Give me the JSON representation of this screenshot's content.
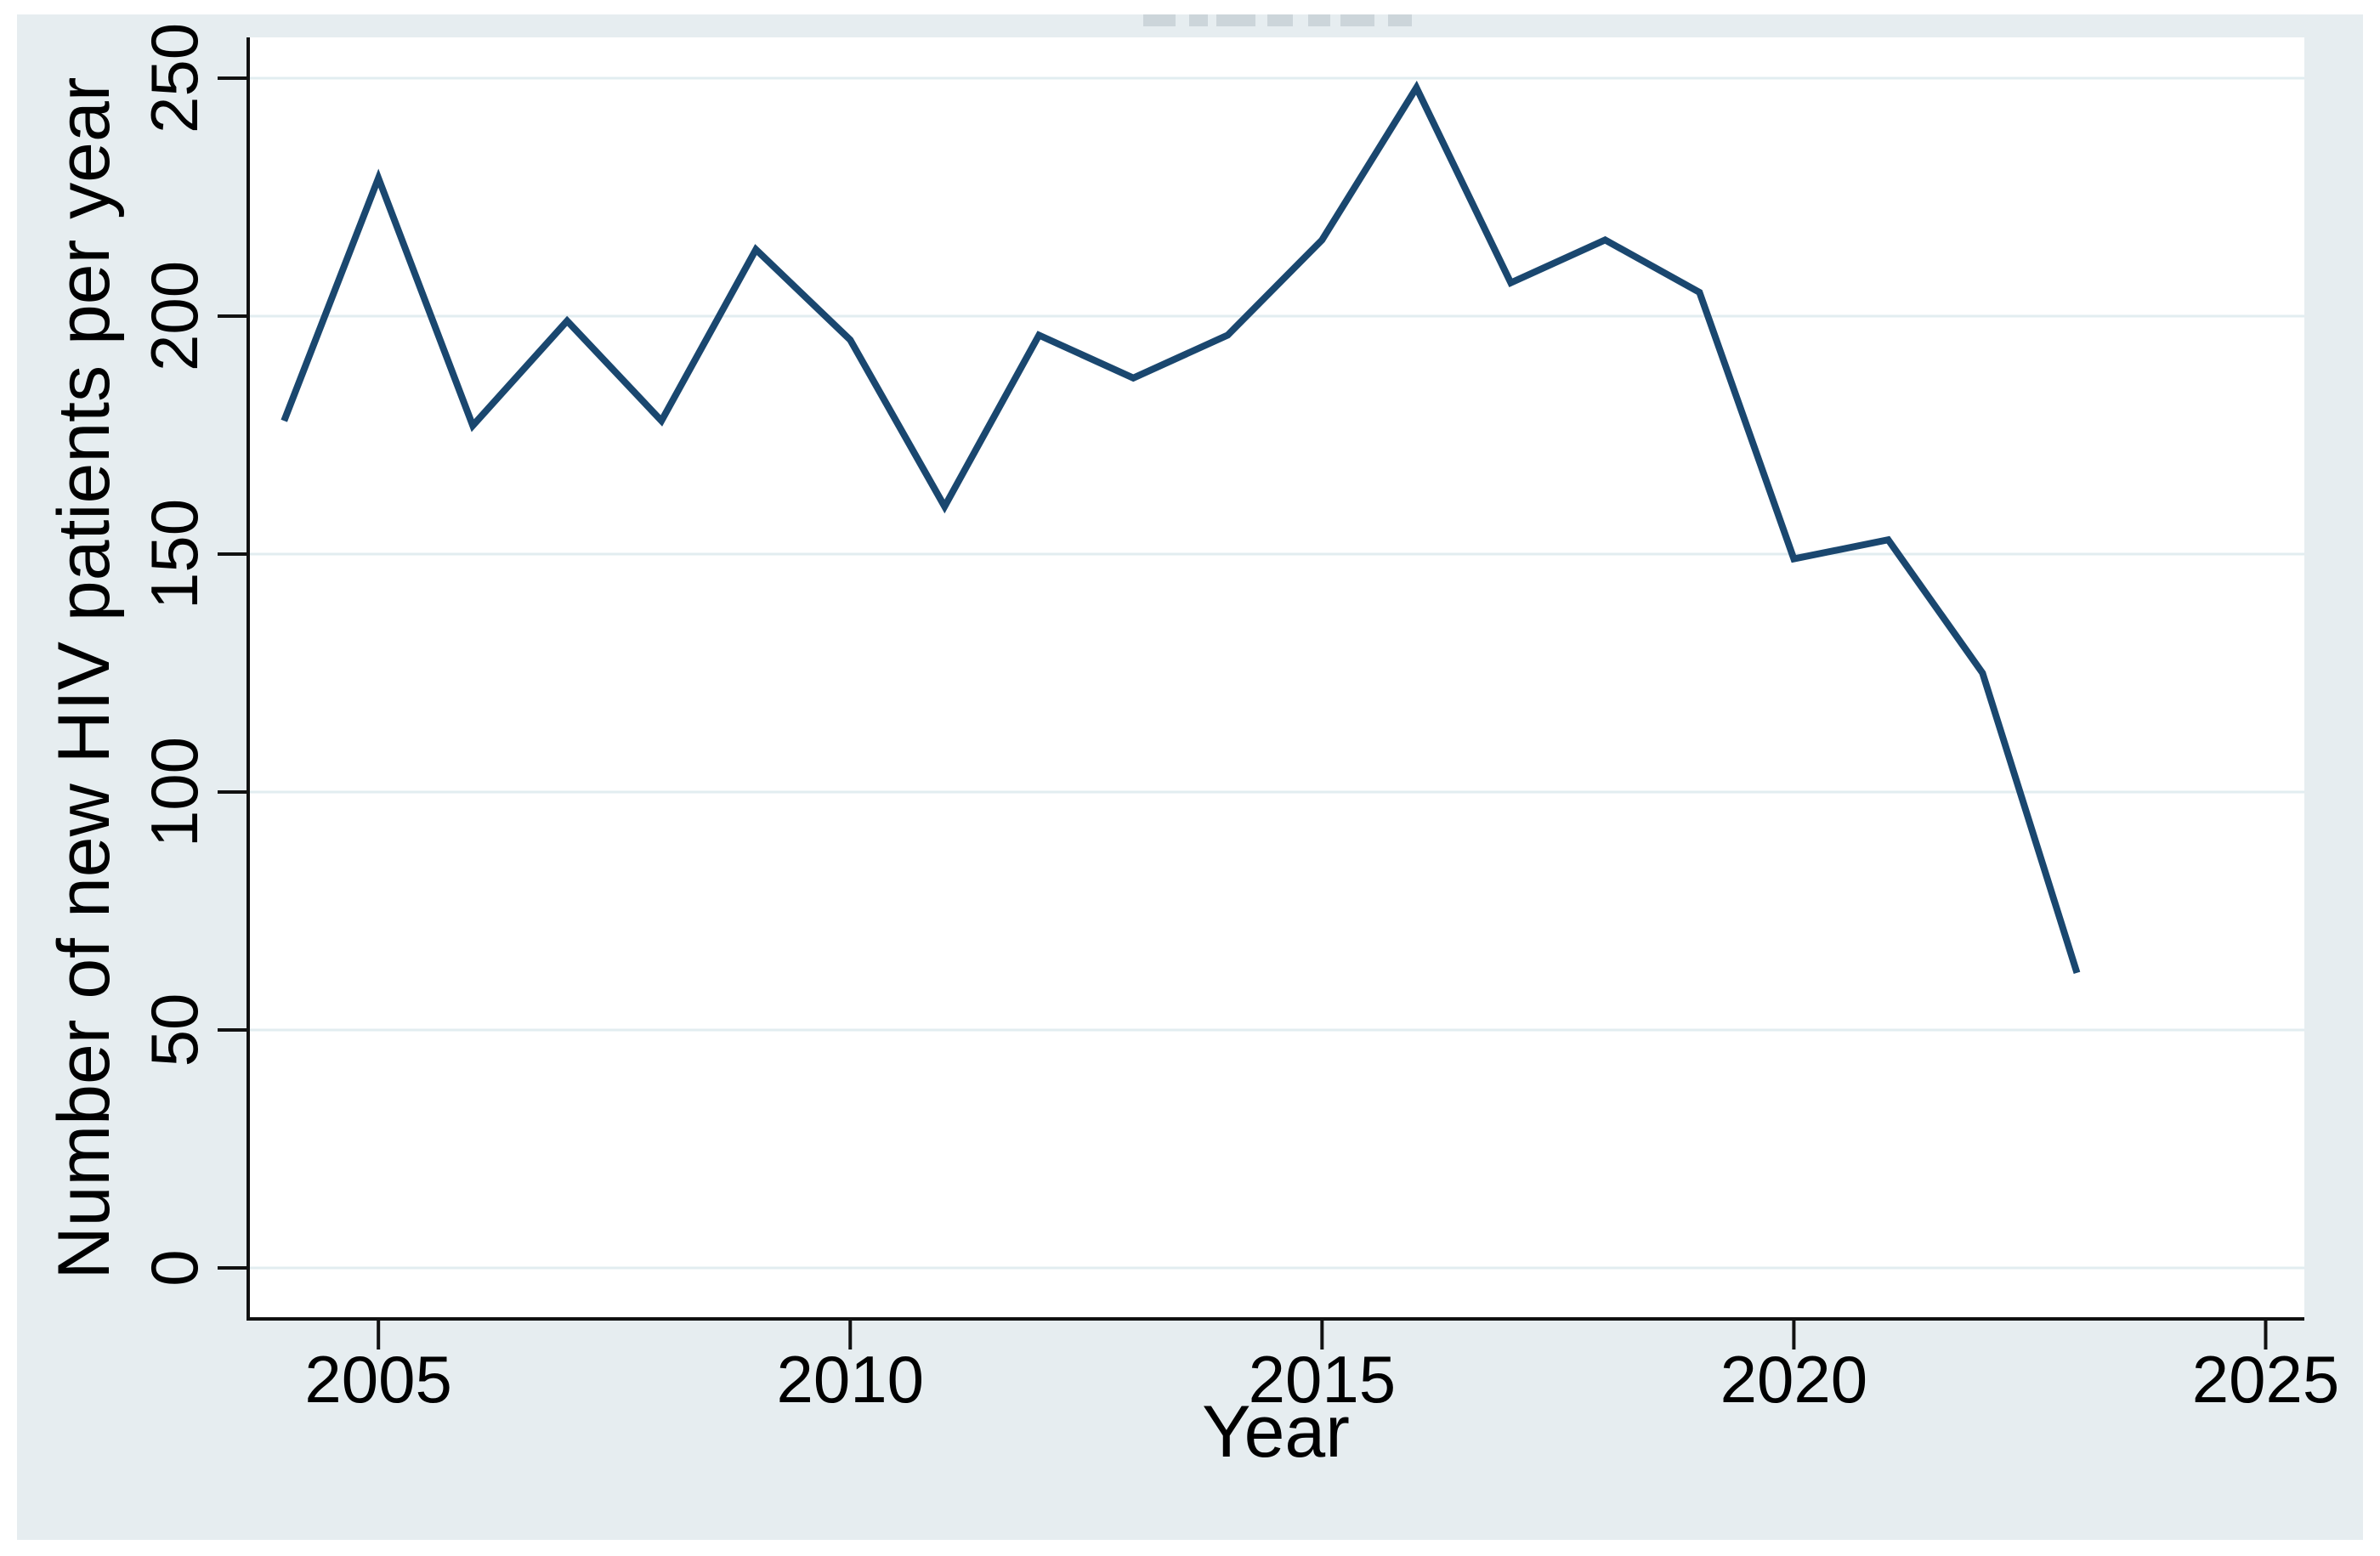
{
  "figure": {
    "outer_background_color": "#e6edf0",
    "plot_background_color": "#ffffff",
    "axis_color": "#111111",
    "gridline_color": "#e2edf0",
    "line_color": "#1a476f",
    "cropped_top_text_note": ""
  },
  "chart_data": {
    "type": "line",
    "title": "",
    "xlabel": "Year",
    "ylabel": "Number of new HIV patients per year",
    "x": [
      2004,
      2005,
      2006,
      2007,
      2008,
      2009,
      2010,
      2011,
      2012,
      2013,
      2014,
      2015,
      2016,
      2017,
      2018,
      2019,
      2020,
      2021,
      2022,
      2023
    ],
    "series": [
      {
        "name": "Number of new HIV patients per year",
        "values": [
          178,
          229,
          177,
          199,
          178,
          214,
          195,
          160,
          196,
          187,
          196,
          216,
          248,
          207,
          216,
          205,
          149,
          153,
          125,
          62
        ]
      }
    ],
    "xticks": [
      2005,
      2010,
      2015,
      2020,
      2025
    ],
    "yticks": [
      0,
      50,
      100,
      150,
      200,
      250
    ],
    "xlim": [
      2003.62,
      2025.41
    ],
    "ylim": [
      -10.71,
      258.57
    ],
    "grid": "horizontal",
    "legend": "none"
  }
}
